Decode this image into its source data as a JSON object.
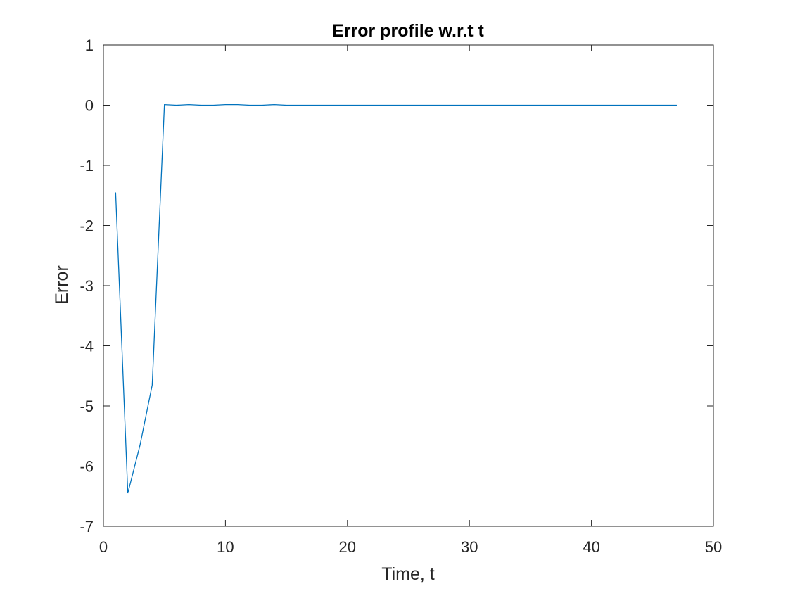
{
  "chart_data": {
    "type": "line",
    "title": "Error profile w.r.t t",
    "xlabel": "Time, t",
    "ylabel": "Error",
    "xlim": [
      0,
      50
    ],
    "ylim": [
      -7,
      1
    ],
    "xticks": [
      0,
      10,
      20,
      30,
      40,
      50
    ],
    "yticks": [
      1,
      0,
      -1,
      -2,
      -3,
      -4,
      -5,
      -6,
      -7
    ],
    "grid": false,
    "legend": "none",
    "colors": {
      "line": "#0072BD",
      "axes": "#262626",
      "background": "#ffffff"
    },
    "series": [
      {
        "x": [
          1,
          2,
          3,
          4,
          5,
          6,
          7,
          8,
          9,
          10,
          11,
          12,
          13,
          14,
          15,
          16,
          17,
          18,
          19,
          20,
          21,
          22,
          23,
          24,
          25,
          26,
          27,
          28,
          29,
          30,
          31,
          32,
          33,
          34,
          35,
          36,
          37,
          38,
          39,
          40,
          41,
          42,
          43,
          44,
          45,
          46,
          47
        ],
        "y": [
          -1.45,
          -6.45,
          -5.65,
          -4.65,
          0.01,
          0.0,
          0.01,
          0.0,
          0.0,
          0.01,
          0.01,
          0.0,
          0.0,
          0.01,
          0.0,
          0.0,
          0.0,
          0.0,
          0.0,
          0.0,
          0.0,
          0.0,
          0.0,
          0.0,
          0.0,
          0.0,
          0.0,
          0.0,
          0.0,
          0.0,
          0.0,
          0.0,
          0.0,
          0.0,
          0.0,
          0.0,
          0.0,
          0.0,
          0.0,
          0.0,
          0.0,
          0.0,
          0.0,
          0.0,
          0.0,
          0.0,
          0.0
        ]
      }
    ]
  }
}
